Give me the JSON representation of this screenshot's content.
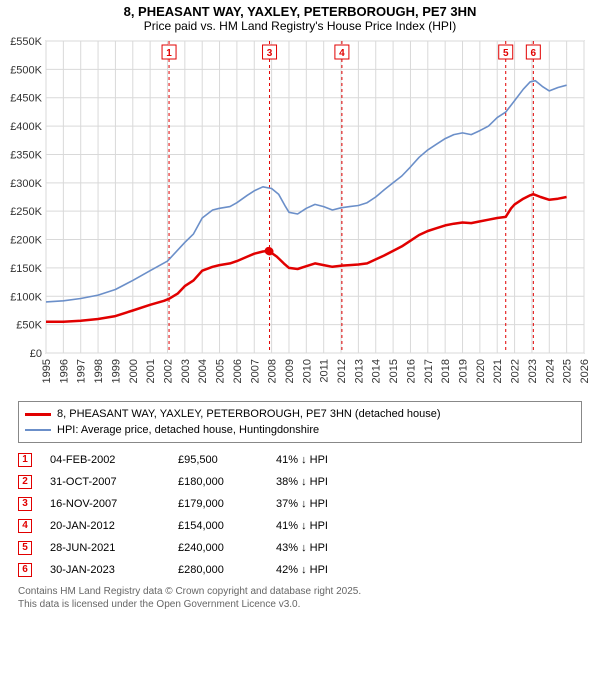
{
  "title_line1": "8, PHEASANT WAY, YAXLEY, PETERBOROUGH, PE7 3HN",
  "title_line2": "Price paid vs. HM Land Registry's House Price Index (HPI)",
  "chart": {
    "type": "line",
    "x_min": 1995,
    "x_max": 2026,
    "x_tick_step": 1,
    "y_min": 0,
    "y_max": 550000,
    "y_tick_step": 50000,
    "y_tick_prefix": "£",
    "y_tick_suffix_k": "K",
    "background_color": "#ffffff",
    "grid_color": "#d9d9d9",
    "axis_color": "#666666",
    "tick_font_size": 11,
    "series_prop": {
      "color": "#e10000",
      "width": 2.5,
      "label": "8, PHEASANT WAY, YAXLEY, PETERBOROUGH, PE7 3HN (detached house)",
      "points": [
        [
          1995.0,
          55000
        ],
        [
          1996.0,
          55000
        ],
        [
          1997.0,
          57000
        ],
        [
          1998.0,
          60000
        ],
        [
          1999.0,
          65000
        ],
        [
          2000.0,
          75000
        ],
        [
          2001.0,
          85000
        ],
        [
          2001.8,
          92000
        ],
        [
          2002.09,
          95500
        ],
        [
          2002.6,
          105000
        ],
        [
          2003.0,
          118000
        ],
        [
          2003.5,
          128000
        ],
        [
          2004.0,
          145000
        ],
        [
          2004.6,
          152000
        ],
        [
          2005.0,
          155000
        ],
        [
          2005.6,
          158000
        ],
        [
          2006.0,
          162000
        ],
        [
          2006.6,
          170000
        ],
        [
          2007.0,
          175000
        ],
        [
          2007.5,
          179000
        ],
        [
          2007.83,
          180000
        ],
        [
          2007.88,
          179000
        ],
        [
          2008.3,
          170000
        ],
        [
          2008.7,
          158000
        ],
        [
          2009.0,
          150000
        ],
        [
          2009.5,
          148000
        ],
        [
          2010.0,
          153000
        ],
        [
          2010.5,
          158000
        ],
        [
          2011.0,
          155000
        ],
        [
          2011.5,
          152000
        ],
        [
          2012.05,
          154000
        ],
        [
          2012.5,
          155000
        ],
        [
          2013.0,
          156000
        ],
        [
          2013.5,
          158000
        ],
        [
          2014.0,
          165000
        ],
        [
          2014.5,
          172000
        ],
        [
          2015.0,
          180000
        ],
        [
          2015.5,
          188000
        ],
        [
          2016.0,
          198000
        ],
        [
          2016.5,
          208000
        ],
        [
          2017.0,
          215000
        ],
        [
          2017.5,
          220000
        ],
        [
          2018.0,
          225000
        ],
        [
          2018.5,
          228000
        ],
        [
          2019.0,
          230000
        ],
        [
          2019.5,
          229000
        ],
        [
          2020.0,
          232000
        ],
        [
          2020.5,
          235000
        ],
        [
          2021.0,
          238000
        ],
        [
          2021.49,
          240000
        ],
        [
          2021.8,
          255000
        ],
        [
          2022.0,
          262000
        ],
        [
          2022.5,
          272000
        ],
        [
          2022.9,
          278000
        ],
        [
          2023.08,
          280000
        ],
        [
          2023.5,
          275000
        ],
        [
          2024.0,
          270000
        ],
        [
          2024.5,
          272000
        ],
        [
          2025.0,
          275000
        ]
      ],
      "markers": [
        {
          "n": "2",
          "year": 2007.83,
          "value": 180000
        },
        {
          "n": "3",
          "year": 2007.88,
          "value": 179000
        }
      ]
    },
    "series_hpi": {
      "color": "#6b8fc9",
      "width": 1.6,
      "label": "HPI: Average price, detached house, Huntingdonshire",
      "points": [
        [
          1995.0,
          90000
        ],
        [
          1996.0,
          92000
        ],
        [
          1997.0,
          96000
        ],
        [
          1998.0,
          102000
        ],
        [
          1999.0,
          112000
        ],
        [
          2000.0,
          128000
        ],
        [
          2001.0,
          145000
        ],
        [
          2002.0,
          162000
        ],
        [
          2003.0,
          195000
        ],
        [
          2003.5,
          210000
        ],
        [
          2004.0,
          238000
        ],
        [
          2004.6,
          252000
        ],
        [
          2005.0,
          255000
        ],
        [
          2005.6,
          258000
        ],
        [
          2006.0,
          265000
        ],
        [
          2006.6,
          278000
        ],
        [
          2007.0,
          286000
        ],
        [
          2007.5,
          293000
        ],
        [
          2008.0,
          290000
        ],
        [
          2008.4,
          280000
        ],
        [
          2008.8,
          258000
        ],
        [
          2009.0,
          248000
        ],
        [
          2009.5,
          245000
        ],
        [
          2010.0,
          255000
        ],
        [
          2010.5,
          262000
        ],
        [
          2011.0,
          258000
        ],
        [
          2011.5,
          252000
        ],
        [
          2012.0,
          256000
        ],
        [
          2012.5,
          258000
        ],
        [
          2013.0,
          260000
        ],
        [
          2013.5,
          265000
        ],
        [
          2014.0,
          275000
        ],
        [
          2014.5,
          288000
        ],
        [
          2015.0,
          300000
        ],
        [
          2015.5,
          312000
        ],
        [
          2016.0,
          328000
        ],
        [
          2016.5,
          345000
        ],
        [
          2017.0,
          358000
        ],
        [
          2017.5,
          368000
        ],
        [
          2018.0,
          378000
        ],
        [
          2018.5,
          385000
        ],
        [
          2019.0,
          388000
        ],
        [
          2019.5,
          385000
        ],
        [
          2020.0,
          392000
        ],
        [
          2020.5,
          400000
        ],
        [
          2021.0,
          415000
        ],
        [
          2021.5,
          425000
        ],
        [
          2022.0,
          445000
        ],
        [
          2022.5,
          465000
        ],
        [
          2022.9,
          478000
        ],
        [
          2023.2,
          480000
        ],
        [
          2023.6,
          470000
        ],
        [
          2024.0,
          462000
        ],
        [
          2024.5,
          468000
        ],
        [
          2025.0,
          472000
        ]
      ]
    },
    "markers_vlines": [
      {
        "n": "1",
        "year": 2002.09,
        "color": "#e10000"
      },
      {
        "n": "3",
        "year": 2007.88,
        "color": "#e10000"
      },
      {
        "n": "4",
        "year": 2012.05,
        "color": "#e10000"
      },
      {
        "n": "5",
        "year": 2021.49,
        "color": "#e10000"
      },
      {
        "n": "6",
        "year": 2023.08,
        "color": "#e10000"
      }
    ],
    "marker_box": {
      "w": 14,
      "h": 14,
      "font_size": 10,
      "stroke": "#e10000",
      "fill": "#ffffff",
      "text": "#e10000"
    }
  },
  "legend": {
    "rows": [
      {
        "color": "#e10000",
        "label": "8, PHEASANT WAY, YAXLEY, PETERBOROUGH, PE7 3HN (detached house)"
      },
      {
        "color": "#6b8fc9",
        "label": "HPI: Average price, detached house, Huntingdonshire"
      }
    ]
  },
  "transactions": [
    {
      "n": "1",
      "date": "04-FEB-2002",
      "price": "£95,500",
      "delta": "41% ↓ HPI"
    },
    {
      "n": "2",
      "date": "31-OCT-2007",
      "price": "£180,000",
      "delta": "38% ↓ HPI"
    },
    {
      "n": "3",
      "date": "16-NOV-2007",
      "price": "£179,000",
      "delta": "37% ↓ HPI"
    },
    {
      "n": "4",
      "date": "20-JAN-2012",
      "price": "£154,000",
      "delta": "41% ↓ HPI"
    },
    {
      "n": "5",
      "date": "28-JUN-2021",
      "price": "£240,000",
      "delta": "43% ↓ HPI"
    },
    {
      "n": "6",
      "date": "30-JAN-2023",
      "price": "£280,000",
      "delta": "42% ↓ HPI"
    }
  ],
  "trans_marker_color": "#e10000",
  "footer_line1": "Contains HM Land Registry data © Crown copyright and database right 2025.",
  "footer_line2": "This data is licensed under the Open Government Licence v3.0."
}
